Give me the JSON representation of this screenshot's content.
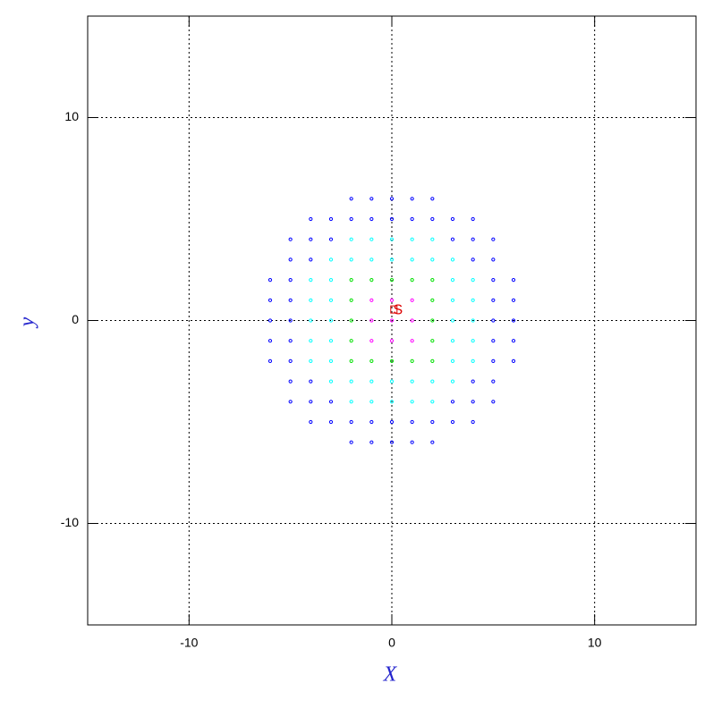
{
  "chart_data": {
    "type": "scatter",
    "xlabel": "X",
    "ylabel": "y",
    "xlim": [
      -15,
      15
    ],
    "ylim": [
      -15,
      15
    ],
    "xticks": [
      -10,
      0,
      10
    ],
    "yticks": [
      -10,
      0,
      10
    ],
    "grid": true,
    "series": [
      {
        "color": "#ff00ff",
        "x": [
          0,
          1,
          -1,
          0,
          0,
          1,
          1,
          -1,
          -1
        ],
        "y": [
          0,
          0,
          0,
          1,
          -1,
          1,
          -1,
          1,
          -1
        ]
      },
      {
        "color": "#00e000",
        "x": [
          2,
          -2,
          0,
          0,
          2,
          2,
          -2,
          -2,
          1,
          -1,
          1,
          -1,
          2,
          2,
          -2,
          -2
        ],
        "y": [
          0,
          0,
          2,
          -2,
          1,
          -1,
          1,
          -1,
          2,
          2,
          -2,
          -2,
          2,
          -2,
          2,
          -2
        ]
      },
      {
        "color": "#00ffff",
        "x": [
          3,
          -3,
          0,
          0,
          3,
          3,
          -3,
          -3,
          1,
          1,
          -1,
          -1,
          3,
          3,
          -3,
          -3,
          2,
          2,
          -2,
          -2,
          4,
          -4,
          0,
          0,
          4,
          4,
          -4,
          -4,
          1,
          1,
          -1,
          -1,
          3,
          3,
          -3,
          -3,
          4,
          4,
          -4,
          -4,
          2,
          2,
          -2,
          -2
        ],
        "y": [
          0,
          0,
          3,
          -3,
          1,
          -1,
          1,
          -1,
          3,
          -3,
          3,
          -3,
          2,
          -2,
          2,
          -2,
          3,
          -3,
          3,
          -3,
          0,
          0,
          4,
          -4,
          1,
          -1,
          1,
          -1,
          4,
          -4,
          4,
          -4,
          3,
          -3,
          3,
          -3,
          2,
          -2,
          2,
          -2,
          4,
          -4,
          4,
          -4
        ]
      },
      {
        "color": "#0000ff",
        "x": [
          5,
          -5,
          0,
          0,
          4,
          4,
          -4,
          -4,
          3,
          3,
          -3,
          -3,
          5,
          5,
          -5,
          -5,
          1,
          1,
          -1,
          -1,
          5,
          5,
          -5,
          -5,
          2,
          2,
          -2,
          -2,
          4,
          4,
          -4,
          -4,
          5,
          5,
          -5,
          -5,
          3,
          3,
          -3,
          -3,
          6,
          -6,
          0,
          0,
          6,
          6,
          -6,
          -6,
          1,
          1,
          -1,
          -1,
          6,
          6,
          -6,
          -6,
          2,
          2,
          -2,
          -2,
          5,
          5,
          -5,
          -5,
          4,
          4,
          -4,
          -4
        ],
        "y": [
          0,
          0,
          5,
          -5,
          3,
          -3,
          3,
          -3,
          4,
          -4,
          4,
          -4,
          1,
          -1,
          1,
          -1,
          5,
          -5,
          5,
          -5,
          2,
          -2,
          2,
          -2,
          5,
          -5,
          5,
          -5,
          4,
          -4,
          4,
          -4,
          3,
          -3,
          3,
          -3,
          5,
          -5,
          5,
          -5,
          0,
          0,
          6,
          -6,
          1,
          -1,
          1,
          -1,
          6,
          -6,
          6,
          -6,
          2,
          -2,
          2,
          -2,
          6,
          -6,
          6,
          -6,
          4,
          -4,
          4,
          -4,
          5,
          -5,
          5,
          -5
        ]
      }
    ],
    "annotation": {
      "text": "S",
      "x": 0.3,
      "y": 0.5,
      "color": "#dd0000"
    }
  }
}
